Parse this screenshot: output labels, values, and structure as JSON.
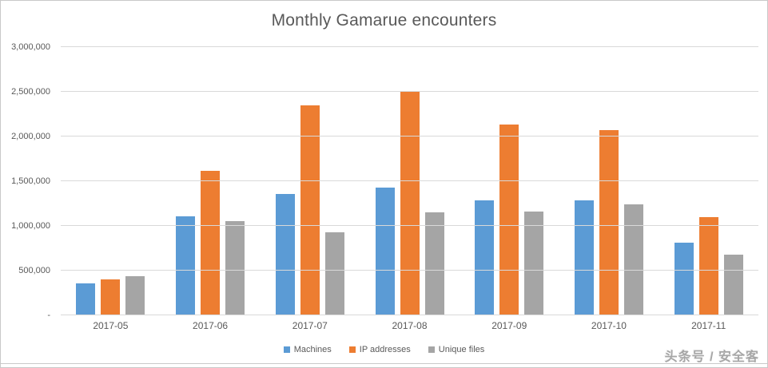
{
  "title": "Monthly Gamarue encounters",
  "watermark": "头条号 / 安全客",
  "colors": {
    "machines": "#5B9BD5",
    "ip_addresses": "#ED7D31",
    "unique_files": "#A5A5A5",
    "gridline": "#d9d9d9",
    "axis_text": "#595959",
    "title_text": "#595959",
    "frame_border": "#c9c9c9"
  },
  "chart_data": {
    "type": "bar",
    "title": "Monthly Gamarue encounters",
    "categories": [
      "2017-05",
      "2017-06",
      "2017-07",
      "2017-08",
      "2017-09",
      "2017-10",
      "2017-11"
    ],
    "series": [
      {
        "name": "Machines",
        "color": "#5B9BD5",
        "values": [
          360000,
          1110000,
          1360000,
          1430000,
          1290000,
          1290000,
          810000
        ]
      },
      {
        "name": "IP addresses",
        "color": "#ED7D31",
        "values": [
          400000,
          1620000,
          2350000,
          2500000,
          2130000,
          2070000,
          1100000
        ]
      },
      {
        "name": "Unique files",
        "color": "#A5A5A5",
        "values": [
          440000,
          1050000,
          930000,
          1150000,
          1160000,
          1240000,
          680000
        ]
      }
    ],
    "xlabel": "",
    "ylabel": "",
    "ylim": [
      0,
      3000000
    ],
    "ytick_interval": 500000,
    "ytick_labels_bottom_to_top": [
      "-",
      "500,000",
      "1,000,000",
      "1,500,000",
      "2,000,000",
      "2,500,000",
      "3,000,000"
    ],
    "grid": true,
    "legend_position": "bottom-center"
  }
}
